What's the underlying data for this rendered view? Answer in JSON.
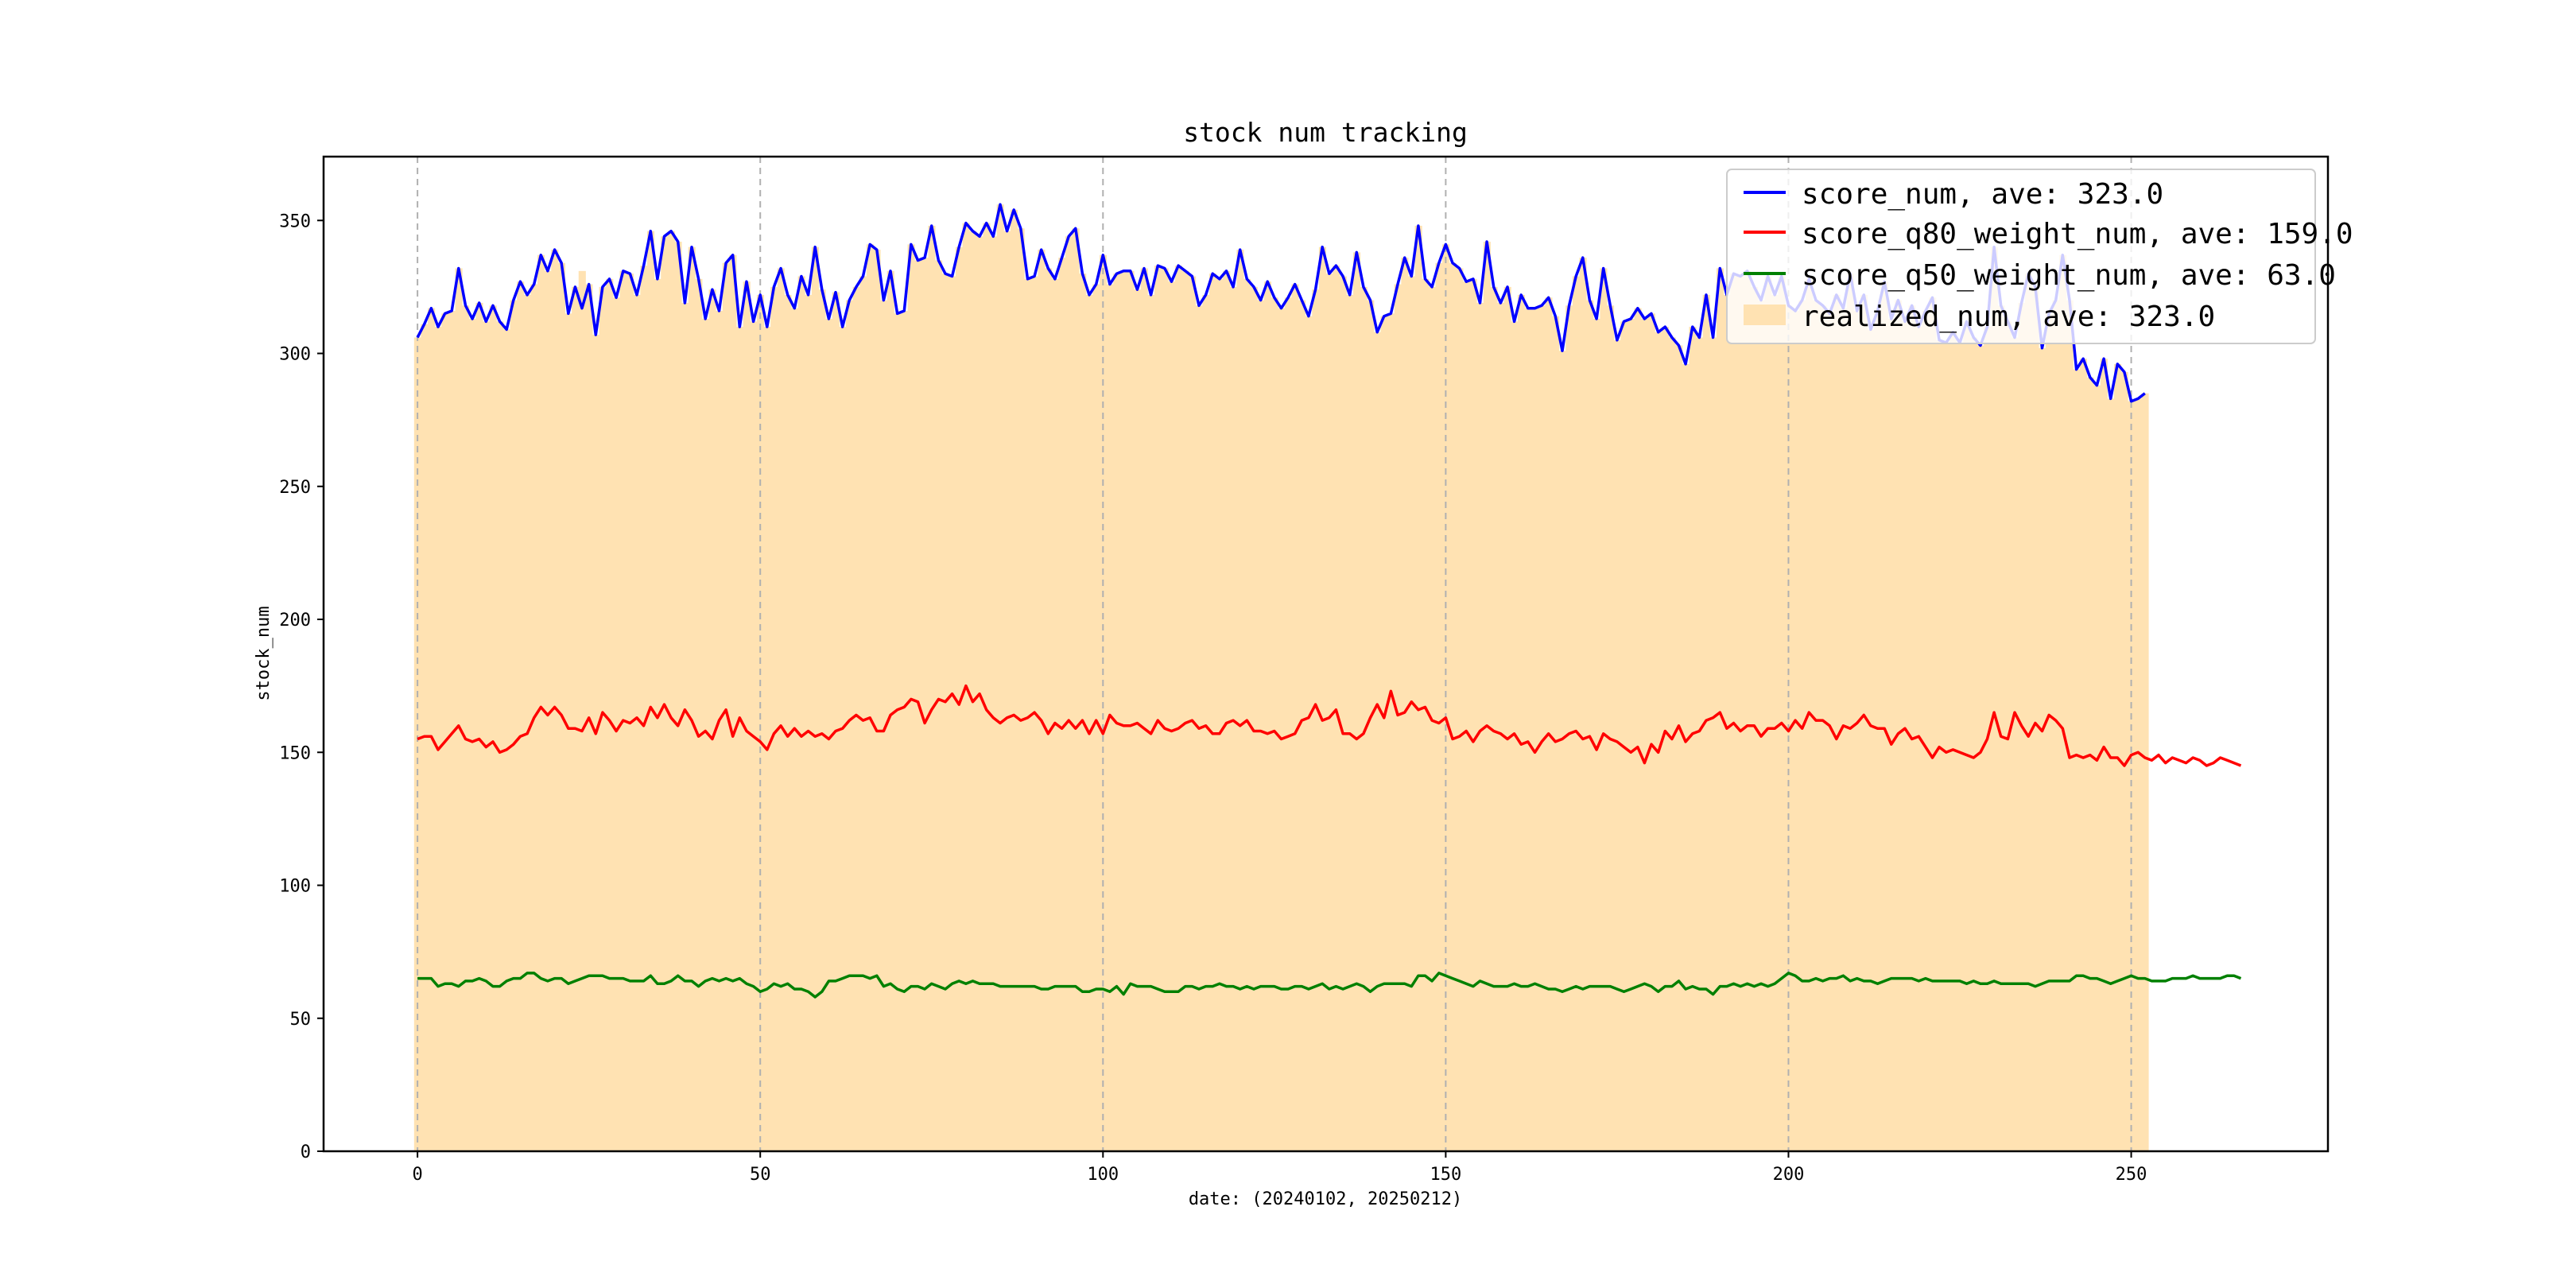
{
  "chart_data": {
    "type": "line",
    "title": "stock num tracking",
    "xlabel": "date: (20240102, 20250212)",
    "ylabel": "stock_num",
    "xlim": [
      -13.7,
      278.7
    ],
    "ylim": [
      0,
      374
    ],
    "xticks": [
      0,
      50,
      100,
      150,
      200,
      250
    ],
    "yticks": [
      0,
      50,
      100,
      150,
      200,
      250,
      300,
      350
    ],
    "grid": "vertical dashed at x ticks",
    "legend_position": "top-right",
    "legend": [
      {
        "label": "score_num, ave: 323.0",
        "color": "#0000ff",
        "kind": "line"
      },
      {
        "label": "score_q80_weight_num, ave: 159.0",
        "color": "#ff0000",
        "kind": "line"
      },
      {
        "label": "score_q50_weight_num, ave: 63.0",
        "color": "#008000",
        "kind": "line"
      },
      {
        "label": "realized_num, ave: 323.0",
        "color": "#ffe2b2",
        "kind": "bar"
      }
    ],
    "series": [
      {
        "name": "score_num",
        "type": "line",
        "color": "#0000ff",
        "values": [
          306,
          311,
          317,
          310,
          315,
          316,
          332,
          318,
          313,
          319,
          312,
          318,
          312,
          309,
          320,
          327,
          322,
          326,
          337,
          331,
          339,
          334,
          315,
          325,
          317,
          326,
          307,
          325,
          328,
          321,
          331,
          330,
          322,
          333,
          346,
          328,
          344,
          346,
          342,
          319,
          340,
          328,
          313,
          324,
          316,
          334,
          337,
          310,
          327,
          312,
          322,
          310,
          325,
          332,
          322,
          317,
          329,
          322,
          340,
          324,
          313,
          323,
          310,
          320,
          325,
          329,
          341,
          339,
          320,
          331,
          315,
          316,
          341,
          335,
          336,
          348,
          335,
          330,
          329,
          340,
          349,
          346,
          344,
          349,
          344,
          356,
          346,
          354,
          347,
          328,
          329,
          339,
          332,
          328,
          336,
          344,
          347,
          330,
          322,
          326,
          337,
          326,
          330,
          331,
          331,
          324,
          332,
          322,
          333,
          332,
          327,
          333,
          331,
          329,
          318,
          322,
          330,
          328,
          331,
          325,
          339,
          328,
          325,
          320,
          327,
          321,
          317,
          321,
          326,
          320,
          314,
          324,
          340,
          330,
          333,
          329,
          322,
          338,
          325,
          320,
          308,
          314,
          315,
          326,
          336,
          329,
          348,
          328,
          325,
          334,
          341,
          334,
          332,
          327,
          328,
          319,
          342,
          325,
          319,
          325,
          312,
          322,
          317,
          317,
          318,
          321,
          314,
          301,
          318,
          329,
          336,
          320,
          313,
          332,
          318,
          305,
          312,
          313,
          317,
          313,
          315,
          308,
          310,
          306,
          303,
          296,
          310,
          306,
          322,
          306,
          332,
          322,
          330,
          329,
          331,
          325,
          320,
          329,
          322,
          329,
          318,
          316,
          320,
          328,
          320,
          318,
          315,
          322,
          317,
          330,
          316,
          322,
          309,
          316,
          327,
          313,
          320,
          312,
          318,
          310,
          316,
          321,
          305,
          304,
          308,
          304,
          312,
          306,
          303,
          310,
          340,
          318,
          312,
          306,
          319,
          330,
          325,
          302,
          315,
          320,
          337,
          320,
          294,
          298,
          291,
          288,
          298,
          283,
          296,
          293,
          282,
          283,
          285
        ]
      },
      {
        "name": "score_q80_weight_num",
        "type": "line",
        "color": "#ff0000",
        "values": [
          155,
          156,
          156,
          151,
          154,
          157,
          160,
          155,
          154,
          155,
          152,
          154,
          150,
          151,
          153,
          156,
          157,
          163,
          167,
          164,
          167,
          164,
          159,
          159,
          158,
          163,
          157,
          165,
          162,
          158,
          162,
          161,
          163,
          160,
          167,
          163,
          168,
          163,
          160,
          166,
          162,
          156,
          158,
          155,
          162,
          166,
          156,
          163,
          158,
          156,
          154,
          151,
          157,
          160,
          156,
          159,
          156,
          158,
          156,
          157,
          155,
          158,
          159,
          162,
          164,
          162,
          163,
          158,
          158,
          164,
          166,
          167,
          170,
          169,
          161,
          166,
          170,
          169,
          172,
          168,
          175,
          169,
          172,
          166,
          163,
          161,
          163,
          164,
          162,
          163,
          165,
          162,
          157,
          161,
          159,
          162,
          159,
          162,
          157,
          162,
          157,
          164,
          161,
          160,
          160,
          161,
          159,
          157,
          162,
          159,
          158,
          159,
          161,
          162,
          159,
          160,
          157,
          157,
          161,
          162,
          160,
          162,
          158,
          158,
          157,
          158,
          155,
          156,
          157,
          162,
          163,
          168,
          162,
          163,
          166,
          157,
          157,
          155,
          157,
          163,
          168,
          163,
          173,
          164,
          165,
          169,
          166,
          167,
          162,
          161,
          163,
          155,
          156,
          158,
          154,
          158,
          160,
          158,
          157,
          155,
          157,
          153,
          154,
          150,
          154,
          157,
          154,
          155,
          157,
          158,
          155,
          156,
          151,
          157,
          155,
          154,
          152,
          150,
          152,
          146,
          153,
          150,
          158,
          155,
          160,
          154,
          157,
          158,
          162,
          163,
          165,
          159,
          161,
          158,
          160,
          160,
          156,
          159,
          159,
          161,
          158,
          162,
          159,
          165,
          162,
          162,
          160,
          155,
          160,
          159,
          161,
          164,
          160,
          159,
          159,
          153,
          157,
          159,
          155,
          156,
          152,
          148,
          152,
          150,
          151,
          150,
          149,
          148,
          150,
          155,
          165,
          156,
          155,
          165,
          160,
          156,
          161,
          158,
          164,
          162,
          159,
          148,
          149,
          148,
          149,
          147,
          152,
          148,
          148,
          145,
          149,
          150,
          148,
          147,
          149,
          146,
          148,
          147,
          146,
          148,
          147,
          145,
          146,
          148,
          147,
          146,
          145
        ]
      },
      {
        "name": "score_q50_weight_num",
        "type": "line",
        "color": "#008000",
        "values": [
          65,
          65,
          65,
          62,
          63,
          63,
          62,
          64,
          64,
          65,
          64,
          62,
          62,
          64,
          65,
          65,
          67,
          67,
          65,
          64,
          65,
          65,
          63,
          64,
          65,
          66,
          66,
          66,
          65,
          65,
          65,
          64,
          64,
          64,
          66,
          63,
          63,
          64,
          66,
          64,
          64,
          62,
          64,
          65,
          64,
          65,
          64,
          65,
          63,
          62,
          60,
          61,
          63,
          62,
          63,
          61,
          61,
          60,
          58,
          60,
          64,
          64,
          65,
          66,
          66,
          66,
          65,
          66,
          62,
          63,
          61,
          60,
          62,
          62,
          61,
          63,
          62,
          61,
          63,
          64,
          63,
          64,
          63,
          63,
          63,
          62,
          62,
          62,
          62,
          62,
          62,
          61,
          61,
          62,
          62,
          62,
          62,
          60,
          60,
          61,
          61,
          60,
          62,
          59,
          63,
          62,
          62,
          62,
          61,
          60,
          60,
          60,
          62,
          62,
          61,
          62,
          62,
          63,
          62,
          62,
          61,
          62,
          61,
          62,
          62,
          62,
          61,
          61,
          62,
          62,
          61,
          62,
          63,
          61,
          62,
          61,
          62,
          63,
          62,
          60,
          62,
          63,
          63,
          63,
          63,
          62,
          66,
          66,
          64,
          67,
          66,
          65,
          64,
          63,
          62,
          64,
          63,
          62,
          62,
          62,
          63,
          62,
          62,
          63,
          62,
          61,
          61,
          60,
          61,
          62,
          61,
          62,
          62,
          62,
          62,
          61,
          60,
          61,
          62,
          63,
          62,
          60,
          62,
          62,
          64,
          61,
          62,
          61,
          61,
          59,
          62,
          62,
          63,
          62,
          63,
          62,
          63,
          62,
          63,
          65,
          67,
          66,
          64,
          64,
          65,
          64,
          65,
          65,
          66,
          64,
          65,
          64,
          64,
          63,
          64,
          65,
          65,
          65,
          65,
          64,
          65,
          64,
          64,
          64,
          64,
          64,
          63,
          64,
          63,
          63,
          64,
          63,
          63,
          63,
          63,
          63,
          62,
          63,
          64,
          64,
          64,
          64,
          66,
          66,
          65,
          65,
          64,
          63,
          64,
          65,
          66,
          65,
          65,
          64,
          64,
          64,
          65,
          65,
          65,
          66,
          65,
          65,
          65,
          65,
          66,
          66,
          65
        ]
      },
      {
        "name": "realized_num",
        "type": "bar",
        "color": "#ffe2b2",
        "values": [
          306,
          311,
          317,
          310,
          315,
          316,
          332,
          318,
          313,
          319,
          312,
          318,
          312,
          309,
          320,
          327,
          322,
          326,
          337,
          331,
          339,
          334,
          315,
          325,
          331,
          326,
          307,
          325,
          328,
          321,
          331,
          330,
          322,
          333,
          346,
          328,
          344,
          346,
          342,
          319,
          340,
          328,
          313,
          324,
          316,
          334,
          337,
          310,
          327,
          312,
          322,
          310,
          325,
          332,
          322,
          317,
          329,
          322,
          340,
          324,
          313,
          323,
          310,
          320,
          325,
          329,
          341,
          339,
          320,
          331,
          315,
          316,
          341,
          335,
          336,
          348,
          335,
          330,
          329,
          340,
          349,
          346,
          344,
          349,
          344,
          356,
          346,
          354,
          347,
          328,
          329,
          339,
          332,
          328,
          336,
          344,
          347,
          330,
          322,
          326,
          337,
          326,
          330,
          331,
          331,
          324,
          332,
          322,
          333,
          332,
          327,
          333,
          331,
          329,
          318,
          322,
          330,
          328,
          331,
          325,
          339,
          328,
          325,
          320,
          327,
          321,
          317,
          321,
          326,
          320,
          314,
          324,
          340,
          330,
          333,
          329,
          322,
          338,
          325,
          320,
          308,
          314,
          315,
          326,
          336,
          329,
          348,
          328,
          325,
          334,
          341,
          334,
          332,
          327,
          328,
          319,
          342,
          325,
          319,
          325,
          312,
          322,
          317,
          317,
          318,
          321,
          314,
          301,
          318,
          329,
          336,
          320,
          313,
          332,
          318,
          305,
          312,
          313,
          317,
          313,
          315,
          308,
          310,
          306,
          303,
          296,
          310,
          306,
          322,
          306,
          332,
          322,
          330,
          329,
          331,
          325,
          320,
          329,
          322,
          329,
          318,
          316,
          320,
          328,
          320,
          318,
          315,
          322,
          317,
          330,
          316,
          322,
          309,
          316,
          327,
          313,
          320,
          312,
          318,
          310,
          316,
          321,
          305,
          304,
          308,
          304,
          312,
          306,
          303,
          310,
          340,
          318,
          312,
          306,
          319,
          330,
          325,
          302,
          315,
          320,
          337,
          320,
          294,
          298,
          291,
          288,
          298,
          283,
          296,
          293,
          282,
          283,
          285
        ]
      }
    ]
  }
}
